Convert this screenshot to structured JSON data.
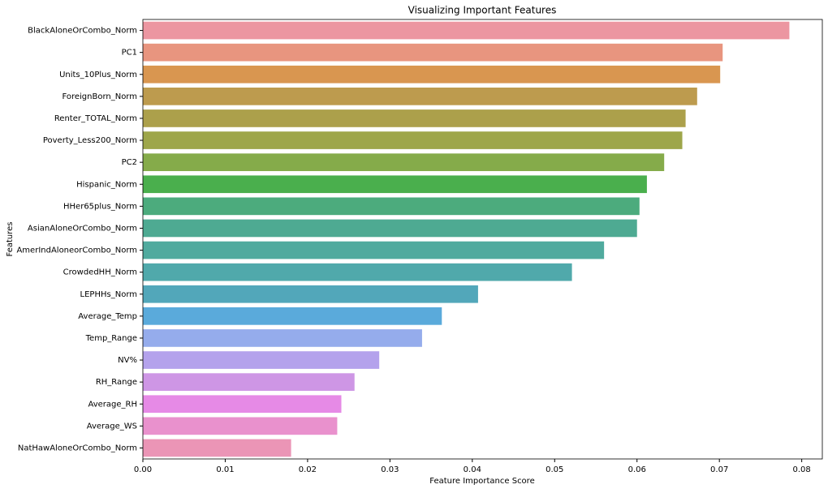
{
  "chart_data": {
    "type": "barh",
    "title": "Visualizing Important Features",
    "x_label": "Feature Importance Score",
    "y_label": "Features",
    "categories": [
      "BlackAloneOrCombo_Norm",
      "PC1",
      "Units_10Plus_Norm",
      "ForeignBorn_Norm",
      "Renter_TOTAL_Norm",
      "Poverty_Less200_Norm",
      "PC2",
      "Hispanic_Norm",
      "HHer65plus_Norm",
      "AsianAloneOrCombo_Norm",
      "AmerIndAloneorCombo_Norm",
      "CrowdedHH_Norm",
      "LEPHHs_Norm",
      "Average_Temp",
      "Temp_Range",
      "NV%",
      "RH_Range",
      "Average_RH",
      "Average_WS",
      "NatHawAloneOrCombo_Norm"
    ],
    "values": [
      0.0785,
      0.0704,
      0.0701,
      0.0673,
      0.0659,
      0.0655,
      0.0633,
      0.0612,
      0.0603,
      0.06,
      0.056,
      0.0521,
      0.0407,
      0.0363,
      0.0339,
      0.0287,
      0.0257,
      0.0241,
      0.0236,
      0.018
    ],
    "colors": [
      "#ec96a1",
      "#e8957f",
      "#d99650",
      "#bd9b4e",
      "#aca04b",
      "#9ea64a",
      "#85ab4a",
      "#4aaf4d",
      "#4cab7d",
      "#4eaa92",
      "#50aa9e",
      "#50a9ab",
      "#52a7ba",
      "#5aaadb",
      "#95acec",
      "#b4a2ec",
      "#ce96e5",
      "#e68ae6",
      "#e991cd",
      "#eb95b6"
    ],
    "xlim": [
      0,
      0.0825
    ],
    "xticks": [
      {
        "value": 0,
        "label": "0.00"
      },
      {
        "value": 0.01,
        "label": "0.01"
      },
      {
        "value": 0.02,
        "label": "0.02"
      },
      {
        "value": 0.03,
        "label": "0.03"
      },
      {
        "value": 0.04,
        "label": "0.04"
      },
      {
        "value": 0.05,
        "label": "0.05"
      },
      {
        "value": 0.06,
        "label": "0.06"
      },
      {
        "value": 0.07,
        "label": "0.07"
      },
      {
        "value": 0.08,
        "label": "0.08"
      }
    ]
  }
}
